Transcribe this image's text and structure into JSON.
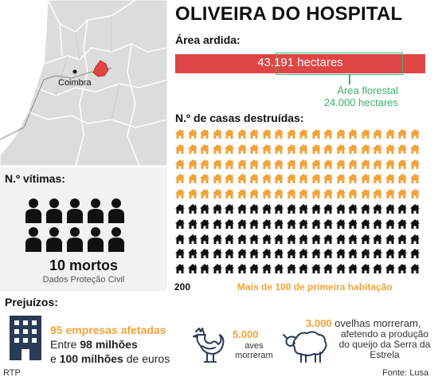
{
  "title": "OLIVEIRA DO HOSPITAL",
  "map": {
    "city_label": "Coimbra",
    "highlight_color": "#e04545"
  },
  "area": {
    "label": "Área ardida:",
    "burned_value": "43.191 hectares",
    "forest_label": "Área florestal",
    "forest_value": "24.000 hectares",
    "bar_color": "#e04545",
    "forest_color": "#3bb36b"
  },
  "houses": {
    "label": "N.º de casas destruídas:",
    "total_label": "200",
    "first_home_label": "Mais de 100 de primeira habitação",
    "orange_color": "#f2a33a",
    "black_color": "#111111",
    "rows": 10,
    "cols": 20,
    "orange_rows": 5
  },
  "victims": {
    "label": "N.º vítimas:",
    "count_text": "10 mortos",
    "source": "Dados Proteção Civil",
    "people_count": 10
  },
  "losses": {
    "label": "Prejuízos:",
    "companies_line1": "95 empresas afetadas",
    "companies_line2_prefix": "Entre ",
    "companies_line2_bold": "98 milhões",
    "companies_line3_prefix": "e ",
    "companies_line3_bold": "100 milhões",
    "companies_line3_suffix": " de euros",
    "birds_count": "5.000",
    "birds_line1": "aves",
    "birds_line2": "morreram",
    "sheep_count": "3.000",
    "sheep_line1_suffix": " ovelhas morreram,",
    "sheep_rest": "afetendo a produção do queijo da Serra da Estrela"
  },
  "credits": {
    "left": "RTP",
    "right": "Fonte: Lusa"
  }
}
